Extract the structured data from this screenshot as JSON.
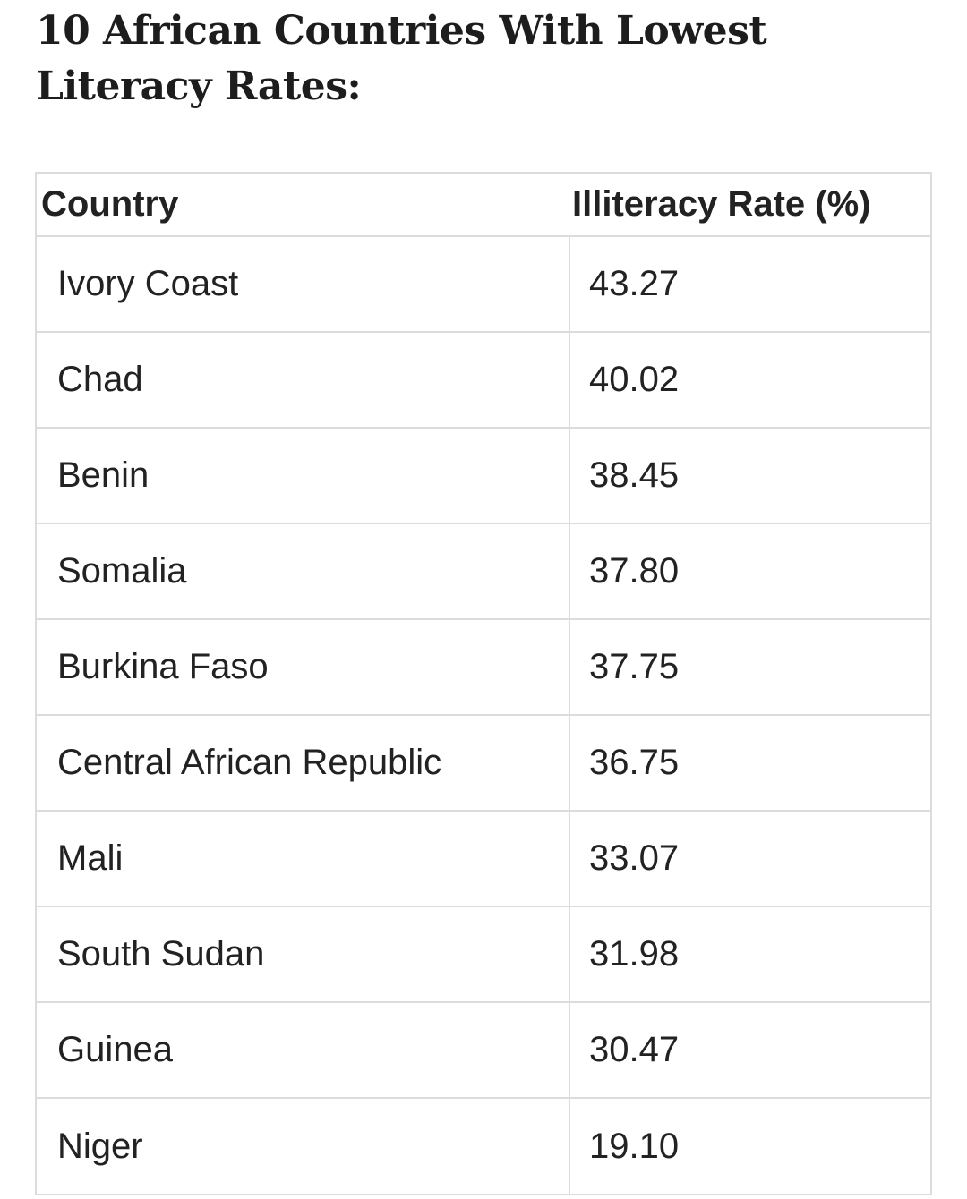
{
  "title": "10 African Countries With Lowest Literacy Rates:",
  "table": {
    "headers": [
      "Country",
      "Illiteracy Rate (%)"
    ],
    "rows": [
      {
        "country": "Ivory Coast",
        "rate": "43.27"
      },
      {
        "country": "Chad",
        "rate": "40.02"
      },
      {
        "country": "Benin",
        "rate": "38.45"
      },
      {
        "country": "Somalia",
        "rate": "37.80"
      },
      {
        "country": "Burkina Faso",
        "rate": "37.75"
      },
      {
        "country": "Central African Republic",
        "rate": "36.75"
      },
      {
        "country": "Mali",
        "rate": "33.07"
      },
      {
        "country": "South Sudan",
        "rate": "31.98"
      },
      {
        "country": "Guinea",
        "rate": "30.47"
      },
      {
        "country": "Niger",
        "rate": "19.10"
      }
    ]
  },
  "colors": {
    "text": "#222222",
    "border": "#dcdcdc",
    "background": "#ffffff"
  }
}
